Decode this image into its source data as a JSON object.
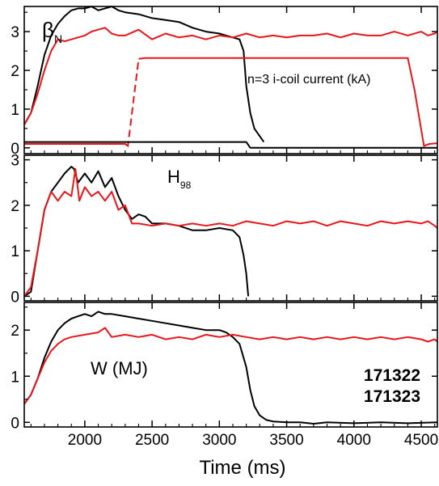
{
  "chart_data": {
    "type": "line",
    "xlabel": "Time (ms)",
    "x_ticks": [
      2000,
      2500,
      3000,
      3500,
      4000,
      4500
    ],
    "xlim": [
      1550,
      4620
    ],
    "colors": {
      "171322": "#000000",
      "171323": "#e8151b",
      "legend_171323": "#d81b5a"
    },
    "legend": [
      {
        "label": "171322",
        "color": "#000000"
      },
      {
        "label": "171323",
        "color": "#d81b5a"
      }
    ],
    "panels": [
      {
        "annotation": {
          "main": "β",
          "sub": "N"
        },
        "ylim": [
          -0.15,
          3.65
        ],
        "y_ticks": [
          0,
          1,
          2,
          3
        ],
        "series": [
          {
            "name": "171322",
            "color": "#000000",
            "x": [
              1550,
              1600,
              1650,
              1700,
              1750,
              1800,
              1850,
              1900,
              1950,
              2000,
              2050,
              2100,
              2150,
              2200,
              2250,
              2300,
              2400,
              2500,
              2600,
              2700,
              2800,
              2900,
              3000,
              3050,
              3100,
              3150,
              3180,
              3200,
              3230,
              3260,
              3300,
              3330
            ],
            "y": [
              0.6,
              0.9,
              1.6,
              2.4,
              2.9,
              3.2,
              3.4,
              3.55,
              3.6,
              3.6,
              3.65,
              3.55,
              3.6,
              3.65,
              3.55,
              3.5,
              3.45,
              3.35,
              3.3,
              3.25,
              3.1,
              3.0,
              2.95,
              2.9,
              2.85,
              2.8,
              2.5,
              1.6,
              0.9,
              0.5,
              0.3,
              0.15
            ]
          },
          {
            "name": "171323",
            "color": "#e8151b",
            "x": [
              1550,
              1600,
              1650,
              1700,
              1750,
              1800,
              1850,
              1900,
              1950,
              2000,
              2050,
              2100,
              2150,
              2200,
              2250,
              2300,
              2400,
              2500,
              2600,
              2700,
              2800,
              2900,
              3000,
              3100,
              3200,
              3300,
              3400,
              3500,
              3600,
              3700,
              3800,
              3900,
              4000,
              4100,
              4200,
              4300,
              4400,
              4500,
              4550,
              4600,
              4620
            ],
            "y": [
              0.6,
              0.9,
              1.4,
              2.0,
              2.5,
              2.8,
              2.75,
              2.8,
              2.85,
              2.9,
              3.0,
              3.05,
              3.1,
              2.95,
              2.9,
              2.9,
              3.05,
              2.8,
              2.95,
              2.85,
              2.9,
              2.8,
              2.9,
              2.85,
              2.95,
              2.85,
              2.9,
              2.85,
              2.9,
              2.9,
              2.95,
              2.85,
              2.95,
              2.9,
              2.9,
              3.0,
              2.9,
              3.0,
              2.9,
              2.95,
              3.0
            ]
          },
          {
            "name": "n=3 i-coil current (kA)",
            "color": "#e8151b",
            "x": [
              1550,
              2300,
              2320,
              2400,
              2450,
              3000,
              4400,
              4450,
              4520,
              4560,
              4620
            ],
            "y": [
              0.1,
              0.1,
              0.05,
              2.3,
              2.32,
              2.32,
              2.32,
              1.5,
              0.05,
              0.1,
              0.12
            ],
            "dash_range": [
              2320,
              2400
            ]
          },
          {
            "name": "171322 i-coil",
            "color": "#000000",
            "x": [
              1550,
              2000,
              2500,
              3000,
              3200,
              3230,
              4620
            ],
            "y": [
              0.15,
              0.15,
              0.15,
              0.15,
              0.15,
              0.0,
              0.0
            ]
          }
        ],
        "label": "n=3 i-coil current (kA)"
      },
      {
        "annotation": {
          "main": "H",
          "sub": "98"
        },
        "ylim": [
          -0.1,
          3.1
        ],
        "y_ticks": [
          0,
          1,
          2,
          3
        ],
        "series": [
          {
            "name": "171322",
            "color": "#000000",
            "x": [
              1550,
              1600,
              1650,
              1700,
              1750,
              1800,
              1850,
              1900,
              1920,
              1950,
              2000,
              2050,
              2100,
              2150,
              2200,
              2250,
              2300,
              2350,
              2400,
              2450,
              2500,
              2600,
              2700,
              2800,
              2900,
              3000,
              3100,
              3150,
              3180,
              3200,
              3215
            ],
            "y": [
              0.0,
              0.1,
              1.0,
              1.9,
              2.3,
              2.5,
              2.7,
              2.85,
              2.8,
              2.5,
              2.7,
              2.5,
              2.75,
              2.4,
              2.6,
              2.2,
              1.9,
              1.7,
              1.8,
              1.75,
              1.6,
              1.6,
              1.55,
              1.45,
              1.45,
              1.5,
              1.45,
              1.3,
              0.9,
              0.5,
              0.0
            ]
          },
          {
            "name": "171323",
            "color": "#e8151b",
            "x": [
              1550,
              1600,
              1650,
              1700,
              1750,
              1800,
              1850,
              1900,
              1930,
              1960,
              2000,
              2050,
              2100,
              2150,
              2200,
              2250,
              2300,
              2350,
              2400,
              2500,
              2600,
              2700,
              2800,
              2900,
              3000,
              3100,
              3200,
              3300,
              3400,
              3500,
              3600,
              3700,
              3800,
              3900,
              4000,
              4100,
              4200,
              4300,
              4400,
              4500,
              4550,
              4600,
              4620
            ],
            "y": [
              0.0,
              0.2,
              1.0,
              1.9,
              2.3,
              2.1,
              2.3,
              2.2,
              2.8,
              2.1,
              2.4,
              2.2,
              2.3,
              2.1,
              2.3,
              1.9,
              2.0,
              1.6,
              1.6,
              1.55,
              1.6,
              1.55,
              1.6,
              1.55,
              1.6,
              1.55,
              1.65,
              1.6,
              1.55,
              1.65,
              1.6,
              1.65,
              1.55,
              1.65,
              1.6,
              1.55,
              1.65,
              1.6,
              1.65,
              1.6,
              1.65,
              1.55,
              1.5
            ]
          }
        ]
      },
      {
        "annotation": {
          "main": "W (MJ)"
        },
        "ylim": [
          -0.1,
          2.6
        ],
        "y_ticks": [
          0,
          1,
          2
        ],
        "series": [
          {
            "name": "171322",
            "color": "#000000",
            "x": [
              1550,
              1600,
              1650,
              1700,
              1750,
              1800,
              1850,
              1900,
              1950,
              2000,
              2050,
              2100,
              2150,
              2200,
              2300,
              2400,
              2500,
              2600,
              2700,
              2800,
              2900,
              3000,
              3050,
              3100,
              3150,
              3200,
              3230,
              3260,
              3300,
              3350,
              3400,
              3500,
              3600,
              3700,
              3800,
              4000,
              4200,
              4400,
              4620
            ],
            "y": [
              0.4,
              0.6,
              0.95,
              1.4,
              1.75,
              2.0,
              2.15,
              2.25,
              2.3,
              2.35,
              2.3,
              2.4,
              2.35,
              2.35,
              2.3,
              2.25,
              2.2,
              2.15,
              2.1,
              2.05,
              2.0,
              2.0,
              1.95,
              1.85,
              1.7,
              1.2,
              0.7,
              0.35,
              0.15,
              0.05,
              0.02,
              0.0,
              0.0,
              -0.03,
              0.0,
              -0.02,
              0.0,
              -0.02,
              0.0
            ]
          },
          {
            "name": "171323",
            "color": "#e8151b",
            "x": [
              1550,
              1600,
              1650,
              1700,
              1750,
              1800,
              1850,
              1900,
              2000,
              2100,
              2150,
              2200,
              2300,
              2400,
              2500,
              2600,
              2700,
              2800,
              2900,
              3000,
              3100,
              3200,
              3300,
              3400,
              3500,
              3600,
              3700,
              3800,
              3900,
              4000,
              4100,
              4200,
              4300,
              4400,
              4500,
              4550,
              4600,
              4620
            ],
            "y": [
              0.4,
              0.6,
              0.95,
              1.3,
              1.55,
              1.7,
              1.8,
              1.85,
              1.9,
              1.95,
              2.05,
              1.85,
              1.9,
              1.85,
              1.9,
              1.8,
              1.85,
              1.8,
              1.9,
              1.85,
              1.9,
              1.85,
              1.8,
              1.85,
              1.8,
              1.85,
              1.8,
              1.85,
              1.8,
              1.85,
              1.8,
              1.85,
              1.8,
              1.85,
              1.8,
              1.75,
              1.8,
              1.75
            ]
          }
        ]
      }
    ]
  }
}
